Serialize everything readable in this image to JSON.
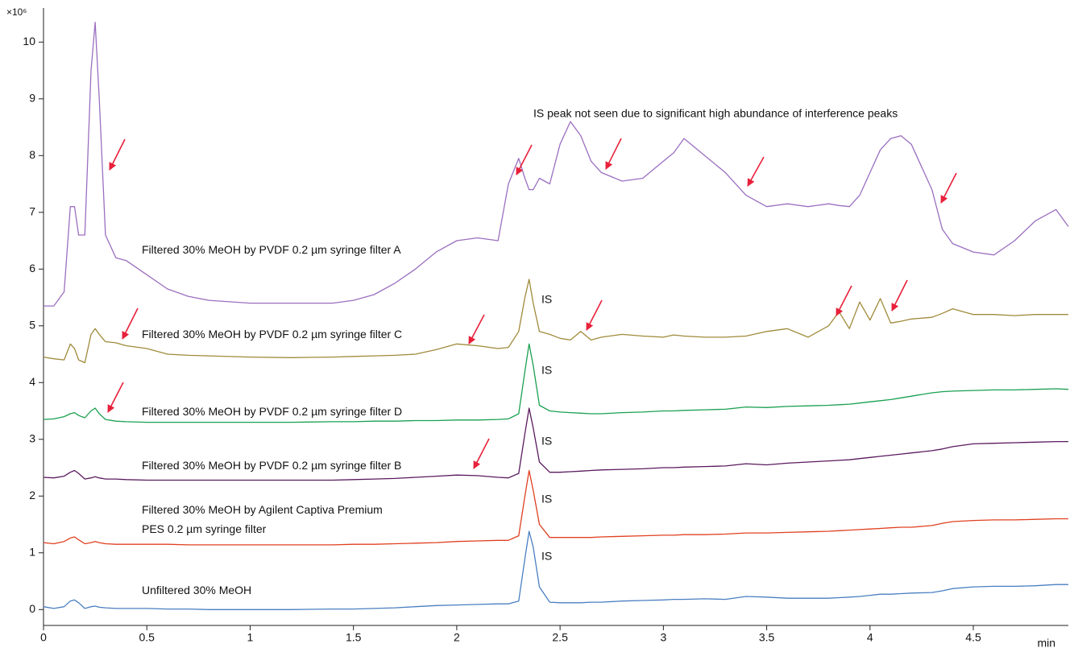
{
  "chart_data": {
    "type": "line",
    "title": "IS peak not seen due to significant high abundance of interference peaks",
    "y_label": "×10⁶",
    "x_label": "min",
    "annotations": [
      "IS",
      "IS",
      "IS",
      "IS",
      "IS"
    ],
    "x": [
      0,
      0.05,
      0.1,
      0.13,
      0.15,
      0.17,
      0.2,
      0.23,
      0.25,
      0.27,
      0.3,
      0.35,
      0.4,
      0.5,
      0.6,
      0.7,
      0.8,
      1.0,
      1.2,
      1.4,
      1.5,
      1.6,
      1.7,
      1.8,
      1.9,
      2.0,
      2.1,
      2.2,
      2.25,
      2.3,
      2.33,
      2.35,
      2.37,
      2.4,
      2.45,
      2.5,
      2.55,
      2.6,
      2.65,
      2.7,
      2.8,
      2.9,
      3.0,
      3.05,
      3.1,
      3.2,
      3.3,
      3.4,
      3.5,
      3.6,
      3.7,
      3.8,
      3.85,
      3.9,
      3.95,
      4.0,
      4.05,
      4.1,
      4.15,
      4.2,
      4.3,
      4.35,
      4.4,
      4.5,
      4.6,
      4.7,
      4.8,
      4.9,
      4.96
    ],
    "series": [
      {
        "name": "Filtered 30% MeOH by PVDF 0.2 µm syringe filter A",
        "color": "#9b6fc0",
        "values": [
          5.35,
          5.35,
          5.6,
          7.1,
          7.1,
          6.6,
          6.6,
          9.5,
          10.35,
          9.0,
          6.6,
          6.2,
          6.15,
          5.9,
          5.65,
          5.52,
          5.45,
          5.4,
          5.4,
          5.4,
          5.45,
          5.55,
          5.75,
          6.0,
          6.3,
          6.5,
          6.55,
          6.5,
          7.5,
          7.95,
          7.6,
          7.4,
          7.4,
          7.6,
          7.5,
          8.2,
          8.6,
          8.35,
          7.9,
          7.7,
          7.55,
          7.6,
          7.9,
          8.05,
          8.3,
          8.0,
          7.7,
          7.3,
          7.1,
          7.15,
          7.1,
          7.15,
          7.12,
          7.1,
          7.3,
          7.7,
          8.1,
          8.3,
          8.35,
          8.2,
          7.4,
          6.7,
          6.45,
          6.3,
          6.25,
          6.5,
          6.85,
          7.05,
          6.75
        ]
      },
      {
        "name": "Filtered 30% MeOH by PVDF 0.2 µm syringe filter C",
        "color": "#a08a3a",
        "values": [
          4.45,
          4.42,
          4.4,
          4.68,
          4.6,
          4.4,
          4.35,
          4.85,
          4.95,
          4.85,
          4.72,
          4.7,
          4.65,
          4.6,
          4.5,
          4.48,
          4.47,
          4.45,
          4.44,
          4.45,
          4.46,
          4.47,
          4.48,
          4.5,
          4.58,
          4.68,
          4.65,
          4.6,
          4.62,
          4.9,
          5.5,
          5.82,
          5.4,
          4.9,
          4.85,
          4.78,
          4.75,
          4.9,
          4.75,
          4.8,
          4.85,
          4.82,
          4.8,
          4.84,
          4.82,
          4.8,
          4.8,
          4.82,
          4.9,
          4.95,
          4.8,
          5.0,
          5.25,
          4.95,
          5.42,
          5.1,
          5.48,
          5.05,
          5.08,
          5.12,
          5.15,
          5.22,
          5.3,
          5.2,
          5.2,
          5.18,
          5.2,
          5.2,
          5.2
        ]
      },
      {
        "name": "Filtered 30% MeOH by PVDF 0.2 µm syringe filter D",
        "color": "#1aa050",
        "values": [
          3.35,
          3.36,
          3.4,
          3.45,
          3.47,
          3.42,
          3.38,
          3.5,
          3.55,
          3.45,
          3.35,
          3.32,
          3.31,
          3.3,
          3.3,
          3.3,
          3.3,
          3.3,
          3.3,
          3.31,
          3.31,
          3.32,
          3.32,
          3.33,
          3.33,
          3.34,
          3.34,
          3.35,
          3.36,
          3.45,
          4.2,
          4.68,
          4.3,
          3.6,
          3.5,
          3.48,
          3.47,
          3.46,
          3.45,
          3.45,
          3.47,
          3.48,
          3.5,
          3.5,
          3.51,
          3.52,
          3.53,
          3.57,
          3.56,
          3.58,
          3.59,
          3.6,
          3.61,
          3.62,
          3.64,
          3.66,
          3.68,
          3.7,
          3.73,
          3.76,
          3.82,
          3.84,
          3.85,
          3.86,
          3.87,
          3.87,
          3.88,
          3.89,
          3.88
        ]
      },
      {
        "name": "Filtered 30% MeOH by PVDF 0.2 µm syringe filter B",
        "color": "#5a1a5e",
        "values": [
          2.33,
          2.32,
          2.35,
          2.42,
          2.45,
          2.4,
          2.3,
          2.32,
          2.34,
          2.32,
          2.3,
          2.3,
          2.29,
          2.28,
          2.28,
          2.28,
          2.28,
          2.28,
          2.28,
          2.28,
          2.29,
          2.3,
          2.31,
          2.33,
          2.35,
          2.37,
          2.36,
          2.33,
          2.32,
          2.4,
          3.1,
          3.55,
          3.2,
          2.6,
          2.42,
          2.42,
          2.43,
          2.44,
          2.45,
          2.46,
          2.47,
          2.48,
          2.5,
          2.5,
          2.51,
          2.52,
          2.53,
          2.57,
          2.55,
          2.58,
          2.6,
          2.62,
          2.63,
          2.64,
          2.66,
          2.68,
          2.7,
          2.72,
          2.74,
          2.76,
          2.8,
          2.83,
          2.87,
          2.92,
          2.93,
          2.94,
          2.95,
          2.96,
          2.96
        ]
      },
      {
        "name": "Filtered 30% MeOH by Agilent Captiva Premium PES 0.2 µm syringe filter",
        "color": "#e04020",
        "values": [
          1.18,
          1.16,
          1.2,
          1.26,
          1.28,
          1.23,
          1.16,
          1.18,
          1.2,
          1.18,
          1.16,
          1.15,
          1.15,
          1.15,
          1.15,
          1.14,
          1.14,
          1.14,
          1.14,
          1.14,
          1.15,
          1.15,
          1.16,
          1.17,
          1.18,
          1.2,
          1.21,
          1.22,
          1.22,
          1.3,
          2.0,
          2.45,
          2.1,
          1.5,
          1.27,
          1.27,
          1.27,
          1.27,
          1.27,
          1.28,
          1.29,
          1.3,
          1.31,
          1.31,
          1.32,
          1.32,
          1.33,
          1.35,
          1.35,
          1.36,
          1.37,
          1.38,
          1.39,
          1.4,
          1.41,
          1.42,
          1.43,
          1.44,
          1.45,
          1.45,
          1.48,
          1.52,
          1.55,
          1.57,
          1.58,
          1.58,
          1.59,
          1.6,
          1.6
        ]
      },
      {
        "name": "Unfiltered 30% MeOH",
        "color": "#4a7fc1",
        "values": [
          0.05,
          0.02,
          0.05,
          0.15,
          0.17,
          0.12,
          0.02,
          0.05,
          0.06,
          0.04,
          0.03,
          0.02,
          0.02,
          0.02,
          0.01,
          0.01,
          0.0,
          0.0,
          0.0,
          0.01,
          0.01,
          0.02,
          0.03,
          0.05,
          0.07,
          0.08,
          0.09,
          0.1,
          0.1,
          0.15,
          0.9,
          1.38,
          1.1,
          0.4,
          0.13,
          0.12,
          0.12,
          0.12,
          0.13,
          0.13,
          0.15,
          0.16,
          0.17,
          0.18,
          0.18,
          0.19,
          0.18,
          0.23,
          0.22,
          0.2,
          0.2,
          0.2,
          0.21,
          0.22,
          0.23,
          0.25,
          0.27,
          0.27,
          0.28,
          0.29,
          0.3,
          0.33,
          0.37,
          0.4,
          0.41,
          0.41,
          0.42,
          0.44,
          0.44
        ]
      }
    ],
    "xlim": [
      0,
      4.96
    ],
    "xticks": [
      0,
      0.5,
      1,
      1.5,
      2,
      2.5,
      3,
      3.5,
      4,
      4.5
    ],
    "ylim": [
      -0.28,
      10.6
    ],
    "yticks": [
      0,
      1,
      2,
      3,
      4,
      5,
      6,
      7,
      8,
      9,
      10
    ],
    "grid": false
  }
}
